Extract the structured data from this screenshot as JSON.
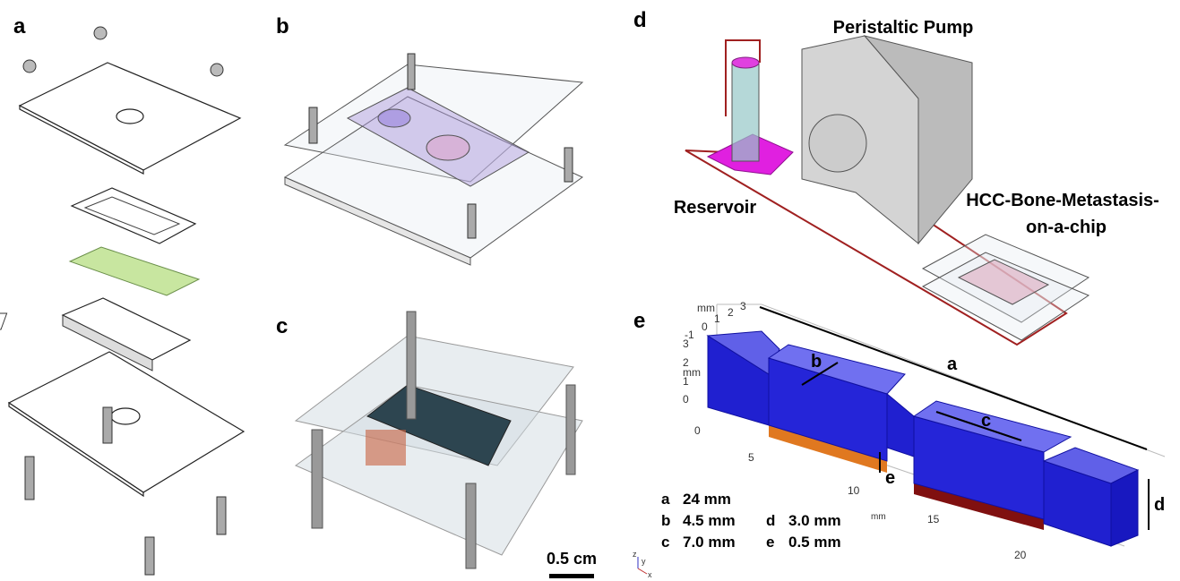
{
  "panel_labels": [
    "a",
    "b",
    "c",
    "d",
    "e"
  ],
  "panel_c": {
    "scale_bar": "0.5 cm"
  },
  "panel_d": {
    "pump": "Peristaltic Pump",
    "reservoir": "Reservoir",
    "chip": [
      "HCC-Bone-Metastasis-",
      "on-a-chip"
    ]
  },
  "panel_e": {
    "dimension_labels": [
      "a",
      "b",
      "c",
      "d",
      "e"
    ],
    "legend": [
      {
        "letter": "a",
        "value": "24  mm"
      },
      {
        "letter": "b",
        "value": "4.5 mm"
      },
      {
        "letter": "c",
        "value": "7.0 mm"
      },
      {
        "letter": "d",
        "value": "3.0 mm"
      },
      {
        "letter": "e",
        "value": "0.5 mm"
      }
    ],
    "axes": {
      "y_unit": "mm",
      "y_ticks": [
        3,
        2,
        1,
        0,
        -1
      ],
      "z_unit": "mm",
      "z_ticks": [
        3,
        2,
        1,
        0
      ],
      "x_unit": "mm",
      "x_ticks": [
        0,
        5,
        10,
        15,
        20
      ],
      "triad": [
        "z",
        "y",
        "x"
      ]
    }
  }
}
